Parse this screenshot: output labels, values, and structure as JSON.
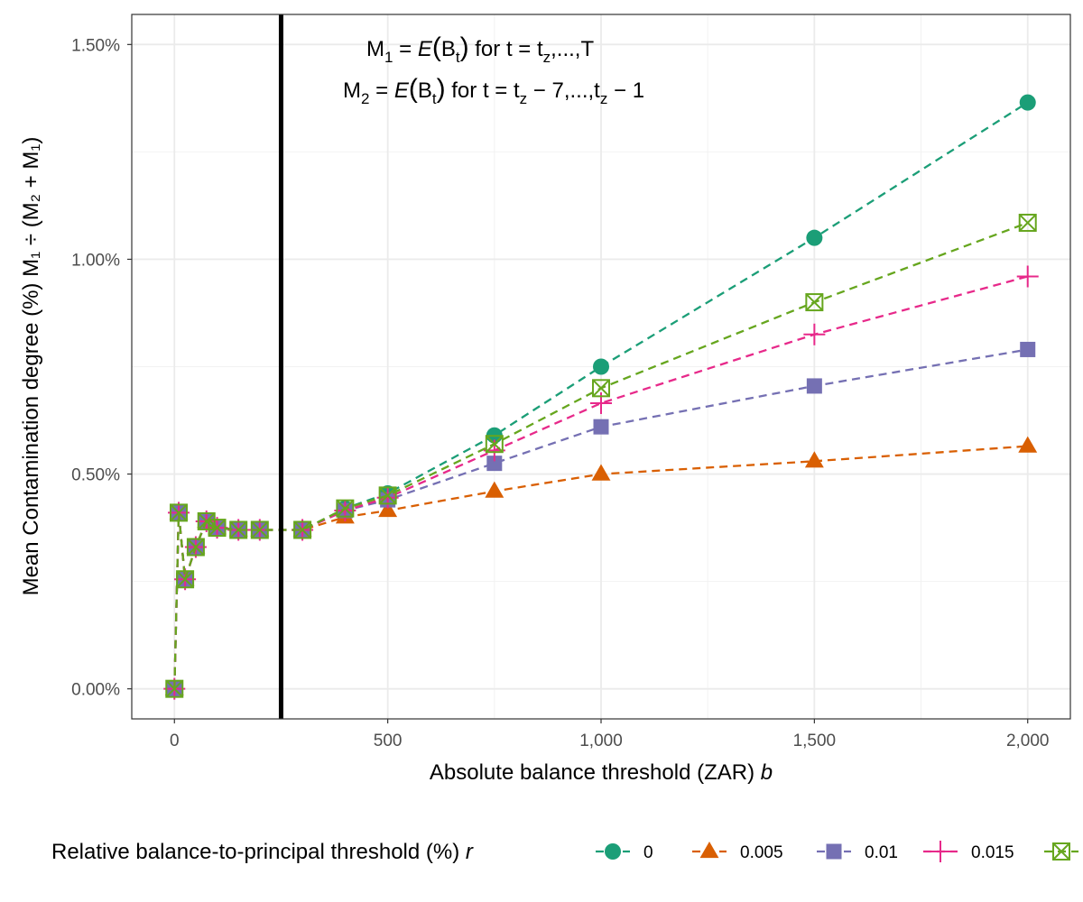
{
  "chart_data": {
    "type": "line",
    "xlabel_main": "Absolute balance threshold (ZAR) ",
    "xlabel_var": "b",
    "ylabel": "Mean Contamination degree (%) M₁ ÷ (M₂ + M₁)",
    "xlim": [
      -100,
      2100
    ],
    "ylim": [
      -0.07,
      1.57
    ],
    "x_ticks": [
      0,
      500,
      1000,
      1500,
      2000
    ],
    "x_tick_labels": [
      "0",
      "500",
      "1,000",
      "1,500",
      "2,000"
    ],
    "y_ticks": [
      0,
      0.5,
      1.0,
      1.5
    ],
    "y_tick_labels": [
      "0.00%",
      "0.50%",
      "1.00%",
      "1.50%"
    ],
    "grid": true,
    "vline": 250,
    "annotation": {
      "line1": {
        "lhs": "M",
        "lhs_sub": "1",
        "eq": " = ",
        "E": "E",
        "B": "B",
        "B_sub": "t",
        "rest": " for t = t",
        "rest_sub": "z",
        "tail": ",...,T"
      },
      "line2": {
        "lhs": "M",
        "lhs_sub": "2",
        "eq": " = ",
        "E": "E",
        "B": "B",
        "B_sub": "t",
        "rest": " for t = t",
        "rest_sub": "z",
        "tail": " − 7,...,t",
        "tail_sub": "z",
        "tail2": " − 1"
      }
    },
    "legend": {
      "title_main": "Relative balance-to-principal threshold (%) ",
      "title_var": "r",
      "placement": "bottom"
    },
    "x": [
      0,
      10,
      25,
      50,
      75,
      100,
      150,
      200,
      300,
      400,
      500,
      750,
      1000,
      1500,
      2000
    ],
    "series": [
      {
        "name": "0",
        "color": "#1b9e77",
        "marker": "circle",
        "values": [
          0.0,
          0.41,
          0.255,
          0.33,
          0.39,
          0.375,
          0.37,
          0.37,
          0.37,
          0.42,
          0.455,
          0.59,
          0.75,
          1.05,
          1.365
        ]
      },
      {
        "name": "0.005",
        "color": "#d95f02",
        "marker": "triangle",
        "values": [
          0.0,
          0.41,
          0.255,
          0.33,
          0.39,
          0.375,
          0.37,
          0.37,
          0.37,
          0.4,
          0.415,
          0.46,
          0.5,
          0.53,
          0.565
        ]
      },
      {
        "name": "0.01",
        "color": "#7570b3",
        "marker": "square",
        "values": [
          0.0,
          0.41,
          0.255,
          0.33,
          0.39,
          0.375,
          0.37,
          0.37,
          0.37,
          0.415,
          0.44,
          0.525,
          0.61,
          0.705,
          0.79
        ]
      },
      {
        "name": "0.015",
        "color": "#e7298a",
        "marker": "plus",
        "values": [
          0.0,
          0.41,
          0.255,
          0.33,
          0.39,
          0.375,
          0.37,
          0.37,
          0.37,
          0.415,
          0.445,
          0.555,
          0.665,
          0.825,
          0.96
        ]
      },
      {
        "name": "",
        "color": "#66a61e",
        "marker": "boxcross",
        "values": [
          0.0,
          0.41,
          0.255,
          0.33,
          0.39,
          0.375,
          0.37,
          0.37,
          0.37,
          0.42,
          0.45,
          0.57,
          0.7,
          0.9,
          1.085
        ]
      }
    ]
  }
}
